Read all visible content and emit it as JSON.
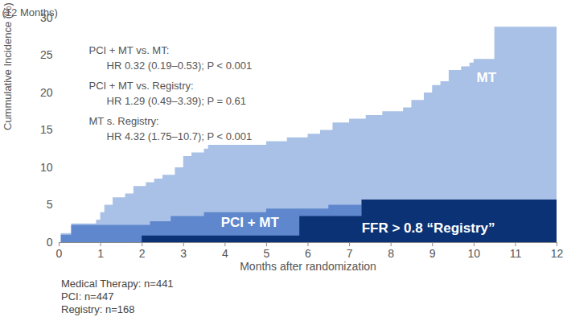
{
  "chart_data": {
    "type": "area",
    "subtitle": "(12 Months)",
    "x_label": "Months after randomization",
    "y_label": "Cummulative Incidence (%)",
    "xlim": [
      0,
      12
    ],
    "xticks": [
      0,
      1,
      2,
      3,
      4,
      5,
      6,
      7,
      8,
      9,
      10,
      11,
      12
    ],
    "ylim": [
      0,
      30
    ],
    "yticks": [
      0,
      5,
      10,
      15,
      20,
      25,
      30
    ],
    "grid": false,
    "annotations": [
      {
        "label": "PCI + MT vs. MT:",
        "detail": "HR 0.32 (0.19–0.53); P < 0.001"
      },
      {
        "label": "PCI + MT vs. Registry:",
        "detail": "HR 1.29 (0.49–3.39); P = 0.61"
      },
      {
        "label": "MT s. Registry:",
        "detail": "HR 4.32 (1.75–10.7); P < 0.001"
      }
    ],
    "footnotes": [
      "Medical Therapy: n=441",
      "PCI: n=447",
      "Registry: n=168"
    ],
    "series": [
      {
        "name": "MT",
        "color": "#a9c1e6",
        "x": [
          0,
          0.05,
          0.3,
          0.9,
          1.0,
          1.1,
          1.3,
          1.6,
          1.8,
          2.1,
          2.3,
          2.5,
          2.8,
          3.0,
          3.2,
          3.5,
          3.6,
          5.0,
          5.5,
          6.0,
          6.3,
          6.6,
          7.0,
          7.4,
          7.8,
          8.3,
          8.5,
          8.8,
          9.0,
          9.2,
          9.4,
          9.7,
          9.9,
          10.0,
          10.5,
          12
        ],
        "values": [
          0,
          1.2,
          2.5,
          3,
          4,
          5,
          6,
          6.5,
          7.5,
          8,
          8.5,
          9,
          10,
          11.5,
          12,
          12.5,
          13,
          13.5,
          14,
          14.5,
          15,
          16,
          16.5,
          17,
          17.5,
          18,
          19,
          20,
          21,
          21.5,
          23,
          23.5,
          24,
          24.5,
          28.8,
          28.8
        ]
      },
      {
        "name": "PCI + MT",
        "color": "#5f87cd",
        "x": [
          0,
          0.05,
          0.3,
          2.2,
          2.7,
          3.5,
          5.0,
          6.5,
          7.3,
          12
        ],
        "values": [
          0,
          1,
          2.3,
          2.8,
          3.5,
          4,
          4.5,
          5,
          5.7,
          5.7
        ]
      },
      {
        "name": "FFR > 0.8 “Registry”",
        "color": "#0c3276",
        "x": [
          0,
          2.0,
          5.8,
          7.3,
          12
        ],
        "values": [
          0,
          0.9,
          3.5,
          5.7,
          5.7
        ]
      }
    ]
  }
}
